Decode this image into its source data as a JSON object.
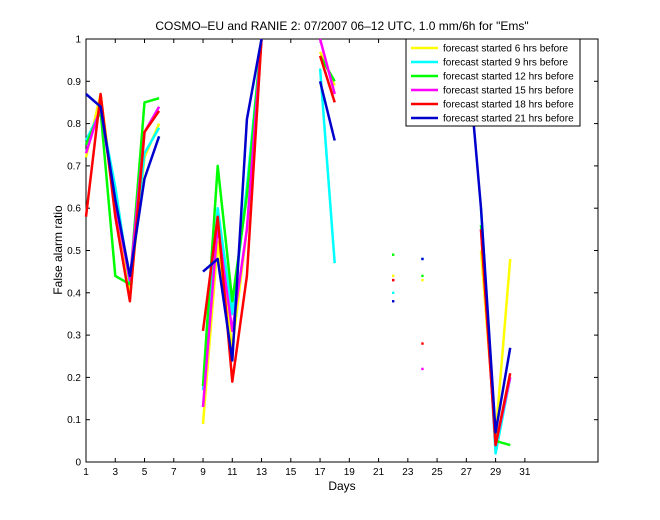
{
  "chart_data": {
    "type": "line",
    "title": "COSMO–EU and RANIE 2: 07/2007 06–12 UTC, 1.0 mm/6h for \"Ems\"",
    "xlabel": "Days",
    "ylabel": "False alarm ratio",
    "xlim": [
      1,
      36
    ],
    "ylim": [
      0,
      1
    ],
    "xticks": [
      1,
      3,
      5,
      7,
      9,
      11,
      13,
      15,
      17,
      19,
      21,
      23,
      25,
      27,
      29,
      31
    ],
    "yticks": [
      0,
      0.1,
      0.2,
      0.3,
      0.4,
      0.5,
      0.6,
      0.7,
      0.8,
      0.9,
      1
    ],
    "legend_position": "top-right",
    "series": [
      {
        "name": "forecast started 6 hrs before",
        "color": "#ffff00",
        "segments": [
          [
            [
              1,
              0.72
            ],
            [
              2,
              0.87
            ],
            [
              3,
              0.6
            ],
            [
              4,
              0.4
            ],
            [
              5,
              0.72
            ],
            [
              6,
              0.8
            ]
          ],
          [
            [
              9,
              0.09
            ],
            [
              10,
              0.52
            ],
            [
              11,
              0.27
            ],
            [
              12,
              0.55
            ],
            [
              13,
              1.0
            ]
          ],
          [
            [
              17,
              0.97
            ],
            [
              18,
              0.89
            ]
          ],
          [
            [
              28,
              0.5
            ],
            [
              29,
              0.06
            ],
            [
              30,
              0.48
            ]
          ]
        ],
        "points": [
          [
            22,
            0.44
          ],
          [
            24,
            0.43
          ]
        ]
      },
      {
        "name": "forecast started 9 hrs before",
        "color": "#00ffff",
        "segments": [
          [
            [
              1,
              0.76
            ],
            [
              2,
              0.83
            ],
            [
              3,
              0.65
            ],
            [
              4,
              0.42
            ],
            [
              5,
              0.73
            ],
            [
              6,
              0.79
            ]
          ],
          [
            [
              9,
              0.17
            ],
            [
              10,
              0.6
            ],
            [
              11,
              0.35
            ],
            [
              12,
              0.65
            ],
            [
              13,
              1.0
            ]
          ],
          [
            [
              17,
              0.93
            ],
            [
              18,
              0.47
            ]
          ],
          [
            [
              28,
              0.6
            ],
            [
              29,
              0.02
            ],
            [
              30,
              0.2
            ]
          ]
        ],
        "points": [
          [
            22,
            0.4
          ],
          [
            24,
            0.48
          ]
        ]
      },
      {
        "name": "forecast started 12 hrs before",
        "color": "#00ff00",
        "segments": [
          [
            [
              1,
              0.75
            ],
            [
              2,
              0.83
            ],
            [
              3,
              0.44
            ],
            [
              4,
              0.42
            ],
            [
              5,
              0.85
            ],
            [
              6,
              0.86
            ]
          ],
          [
            [
              9,
              0.18
            ],
            [
              10,
              0.7
            ],
            [
              11,
              0.38
            ],
            [
              12,
              0.63
            ],
            [
              13,
              1.0
            ]
          ],
          [
            [
              17,
              0.96
            ],
            [
              18,
              0.9
            ]
          ],
          [
            [
              28,
              0.56
            ],
            [
              29,
              0.05
            ],
            [
              30,
              0.04
            ]
          ]
        ],
        "points": [
          [
            22,
            0.49
          ],
          [
            24,
            0.44
          ]
        ]
      },
      {
        "name": "forecast started 15 hrs before",
        "color": "#ff00ff",
        "segments": [
          [
            [
              1,
              0.73
            ],
            [
              2,
              0.84
            ],
            [
              3,
              0.61
            ],
            [
              4,
              0.43
            ],
            [
              5,
              0.78
            ],
            [
              6,
              0.84
            ]
          ],
          [
            [
              9,
              0.13
            ],
            [
              10,
              0.56
            ],
            [
              11,
              0.31
            ],
            [
              12,
              0.55
            ],
            [
              13,
              1.0
            ]
          ],
          [
            [
              17,
              1.0
            ],
            [
              18,
              0.87
            ]
          ],
          [
            [
              28,
              0.55
            ],
            [
              29,
              0.04
            ],
            [
              30,
              0.2
            ]
          ]
        ],
        "points": [
          [
            22,
            0.43
          ],
          [
            24,
            0.22
          ]
        ]
      },
      {
        "name": "forecast started 18 hrs before",
        "color": "#ff0000",
        "segments": [
          [
            [
              1,
              0.58
            ],
            [
              2,
              0.87
            ],
            [
              3,
              0.58
            ],
            [
              4,
              0.38
            ],
            [
              5,
              0.78
            ],
            [
              6,
              0.83
            ]
          ],
          [
            [
              9,
              0.31
            ],
            [
              10,
              0.58
            ],
            [
              11,
              0.19
            ],
            [
              12,
              0.44
            ],
            [
              13,
              1.0
            ]
          ],
          [
            [
              17,
              0.96
            ],
            [
              18,
              0.85
            ]
          ],
          [
            [
              28,
              0.55
            ],
            [
              29,
              0.04
            ],
            [
              30,
              0.21
            ]
          ]
        ],
        "points": [
          [
            22,
            0.43
          ],
          [
            24,
            0.28
          ]
        ]
      },
      {
        "name": "forecast started 21 hrs before",
        "color": "#0000cc",
        "segments": [
          [
            [
              1,
              0.87
            ],
            [
              2,
              0.84
            ],
            [
              3,
              0.62
            ],
            [
              4,
              0.44
            ],
            [
              5,
              0.67
            ],
            [
              6,
              0.77
            ]
          ],
          [
            [
              9,
              0.45
            ],
            [
              10,
              0.48
            ],
            [
              11,
              0.24
            ],
            [
              12,
              0.81
            ],
            [
              13,
              1.0
            ]
          ],
          [
            [
              17,
              0.9
            ],
            [
              18,
              0.76
            ]
          ],
          [
            [
              27,
              1.0
            ],
            [
              28,
              0.6
            ],
            [
              29,
              0.07
            ],
            [
              30,
              0.27
            ]
          ]
        ],
        "points": [
          [
            22,
            0.38
          ],
          [
            24,
            0.48
          ]
        ]
      }
    ]
  }
}
